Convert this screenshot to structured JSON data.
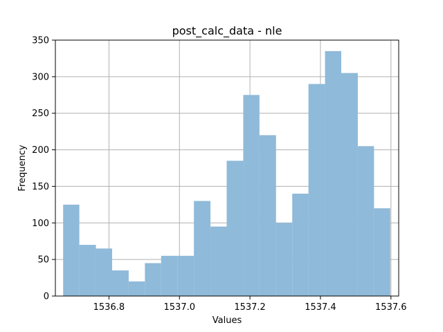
{
  "chart_data": {
    "type": "bar",
    "title": "post_calc_data - nle",
    "xlabel": "Values",
    "ylabel": "Frequency",
    "xlim": [
      1536.648,
      1537.622
    ],
    "ylim": [
      0,
      350
    ],
    "grid": true,
    "bar_color": "#8fbad9",
    "bins": [
      {
        "start": 1536.67,
        "end": 1536.716,
        "value": 125
      },
      {
        "start": 1536.716,
        "end": 1536.763,
        "value": 70
      },
      {
        "start": 1536.763,
        "end": 1536.809,
        "value": 65
      },
      {
        "start": 1536.809,
        "end": 1536.856,
        "value": 35
      },
      {
        "start": 1536.856,
        "end": 1536.902,
        "value": 20
      },
      {
        "start": 1536.902,
        "end": 1536.948,
        "value": 45
      },
      {
        "start": 1536.948,
        "end": 1536.995,
        "value": 55
      },
      {
        "start": 1536.995,
        "end": 1537.041,
        "value": 55
      },
      {
        "start": 1537.041,
        "end": 1537.088,
        "value": 130
      },
      {
        "start": 1537.088,
        "end": 1537.134,
        "value": 95
      },
      {
        "start": 1537.134,
        "end": 1537.181,
        "value": 185
      },
      {
        "start": 1537.181,
        "end": 1537.227,
        "value": 275
      },
      {
        "start": 1537.227,
        "end": 1537.274,
        "value": 220
      },
      {
        "start": 1537.274,
        "end": 1537.32,
        "value": 100
      },
      {
        "start": 1537.32,
        "end": 1537.366,
        "value": 140
      },
      {
        "start": 1537.366,
        "end": 1537.413,
        "value": 290
      },
      {
        "start": 1537.413,
        "end": 1537.459,
        "value": 335
      },
      {
        "start": 1537.459,
        "end": 1537.506,
        "value": 305
      },
      {
        "start": 1537.506,
        "end": 1537.552,
        "value": 205
      },
      {
        "start": 1537.552,
        "end": 1537.598,
        "value": 120
      }
    ],
    "xticks": [
      {
        "value": 1536.8,
        "label": "1536.8"
      },
      {
        "value": 1537.0,
        "label": "1537.0"
      },
      {
        "value": 1537.2,
        "label": "1537.2"
      },
      {
        "value": 1537.4,
        "label": "1537.4"
      },
      {
        "value": 1537.6,
        "label": "1537.6"
      }
    ],
    "yticks": [
      {
        "value": 0,
        "label": "0"
      },
      {
        "value": 50,
        "label": "50"
      },
      {
        "value": 100,
        "label": "100"
      },
      {
        "value": 150,
        "label": "150"
      },
      {
        "value": 200,
        "label": "200"
      },
      {
        "value": 250,
        "label": "250"
      },
      {
        "value": 300,
        "label": "300"
      },
      {
        "value": 350,
        "label": "350"
      }
    ]
  }
}
